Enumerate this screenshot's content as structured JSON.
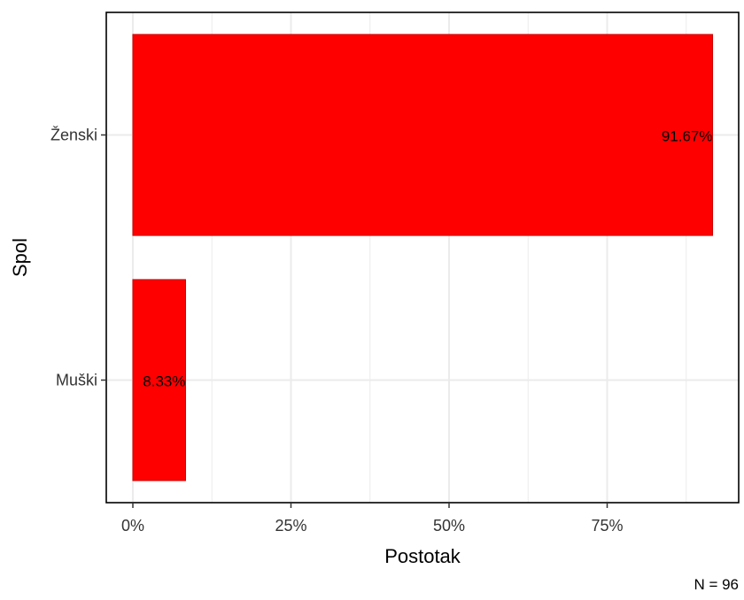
{
  "chart_data": {
    "type": "bar",
    "orientation": "horizontal",
    "categories": [
      "Ženski",
      "Muški"
    ],
    "values": [
      91.67,
      8.33
    ],
    "data_labels": [
      "91.67%",
      "8.33%"
    ],
    "title": "",
    "xlabel": "Postotak",
    "ylabel": "Spol",
    "xlim": [
      0,
      100
    ],
    "x_ticks": [
      0,
      25,
      50,
      75
    ],
    "x_tick_labels": [
      "0%",
      "25%",
      "50%",
      "75%"
    ],
    "grid": true,
    "legend": "none",
    "caption": "N = 96",
    "colors": {
      "bar_fill": "#ff0000",
      "bar_stroke": "#cc0000",
      "grid": "#ebebeb",
      "panel_border": "#000000",
      "text": "#000000",
      "tick_text": "#333333"
    }
  }
}
